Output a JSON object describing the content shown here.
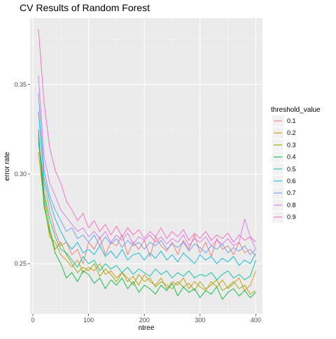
{
  "chart_data": {
    "type": "line",
    "title": "CV Results of Random Forest",
    "xlabel": "ntree",
    "ylabel": "error rate",
    "xlim": [
      -5,
      412
    ],
    "ylim": [
      0.222,
      0.387
    ],
    "x_ticks": [
      0,
      100,
      200,
      300,
      400
    ],
    "x_tick_labels": [
      "0",
      "100",
      "200",
      "300",
      "400"
    ],
    "y_ticks": [
      0.25,
      0.3,
      0.35
    ],
    "y_tick_labels": [
      "0.25",
      "0.30",
      "0.35"
    ],
    "grid": true,
    "legend": {
      "title": "threshold_value",
      "placement": "right"
    },
    "x": [
      10,
      20,
      30,
      40,
      50,
      60,
      70,
      80,
      90,
      100,
      110,
      120,
      130,
      140,
      150,
      160,
      170,
      180,
      190,
      200,
      210,
      220,
      230,
      240,
      250,
      260,
      270,
      280,
      290,
      300,
      310,
      320,
      330,
      340,
      350,
      360,
      370,
      380,
      390,
      400
    ],
    "series": [
      {
        "name": "0.1",
        "color": "#F8766D",
        "values": [
          0.32,
          0.295,
          0.28,
          0.268,
          0.26,
          0.262,
          0.255,
          0.258,
          0.25,
          0.262,
          0.258,
          0.265,
          0.255,
          0.262,
          0.26,
          0.266,
          0.255,
          0.262,
          0.258,
          0.263,
          0.254,
          0.265,
          0.26,
          0.257,
          0.262,
          0.255,
          0.263,
          0.258,
          0.266,
          0.256,
          0.262,
          0.254,
          0.264,
          0.258,
          0.26,
          0.255,
          0.262,
          0.256,
          0.258,
          0.254
        ]
      },
      {
        "name": "0.2",
        "color": "#D39200",
        "values": [
          0.312,
          0.285,
          0.265,
          0.262,
          0.255,
          0.252,
          0.248,
          0.252,
          0.245,
          0.248,
          0.246,
          0.25,
          0.244,
          0.246,
          0.242,
          0.245,
          0.24,
          0.243,
          0.238,
          0.244,
          0.24,
          0.238,
          0.242,
          0.236,
          0.24,
          0.238,
          0.242,
          0.236,
          0.24,
          0.237,
          0.235,
          0.24,
          0.237,
          0.241,
          0.236,
          0.239,
          0.242,
          0.235,
          0.238,
          0.246
        ]
      },
      {
        "name": "0.3",
        "color": "#93AA00",
        "values": [
          0.318,
          0.288,
          0.27,
          0.258,
          0.262,
          0.255,
          0.25,
          0.245,
          0.248,
          0.246,
          0.25,
          0.243,
          0.247,
          0.244,
          0.24,
          0.245,
          0.242,
          0.238,
          0.244,
          0.24,
          0.242,
          0.237,
          0.24,
          0.238,
          0.236,
          0.24,
          0.237,
          0.239,
          0.235,
          0.24,
          0.236,
          0.238,
          0.241,
          0.235,
          0.237,
          0.24,
          0.236,
          0.238,
          0.233,
          0.235
        ]
      },
      {
        "name": "0.4",
        "color": "#00BA38",
        "values": [
          0.325,
          0.282,
          0.268,
          0.256,
          0.25,
          0.242,
          0.245,
          0.24,
          0.246,
          0.244,
          0.239,
          0.242,
          0.236,
          0.241,
          0.238,
          0.242,
          0.236,
          0.24,
          0.234,
          0.238,
          0.236,
          0.233,
          0.238,
          0.235,
          0.239,
          0.232,
          0.237,
          0.234,
          0.236,
          0.231,
          0.235,
          0.233,
          0.237,
          0.23,
          0.234,
          0.236,
          0.232,
          0.235,
          0.231,
          0.234
        ]
      },
      {
        "name": "0.5",
        "color": "#00C19F",
        "values": [
          0.322,
          0.29,
          0.275,
          0.265,
          0.258,
          0.256,
          0.252,
          0.248,
          0.254,
          0.25,
          0.252,
          0.246,
          0.25,
          0.247,
          0.249,
          0.245,
          0.248,
          0.244,
          0.247,
          0.245,
          0.243,
          0.247,
          0.244,
          0.246,
          0.242,
          0.245,
          0.243,
          0.246,
          0.242,
          0.244,
          0.243,
          0.245,
          0.241,
          0.244,
          0.246,
          0.242,
          0.244,
          0.241,
          0.243,
          0.252
        ]
      },
      {
        "name": "0.6",
        "color": "#00B9E3",
        "values": [
          0.335,
          0.298,
          0.285,
          0.275,
          0.268,
          0.262,
          0.258,
          0.262,
          0.256,
          0.258,
          0.255,
          0.26,
          0.254,
          0.257,
          0.253,
          0.258,
          0.252,
          0.255,
          0.256,
          0.252,
          0.256,
          0.253,
          0.257,
          0.252,
          0.255,
          0.251,
          0.256,
          0.253,
          0.25,
          0.255,
          0.252,
          0.254,
          0.25,
          0.253,
          0.251,
          0.254,
          0.249,
          0.252,
          0.25,
          0.256
        ]
      },
      {
        "name": "0.7",
        "color": "#619CFF",
        "values": [
          0.345,
          0.302,
          0.288,
          0.28,
          0.274,
          0.268,
          0.27,
          0.264,
          0.266,
          0.262,
          0.266,
          0.26,
          0.265,
          0.261,
          0.264,
          0.259,
          0.263,
          0.26,
          0.262,
          0.258,
          0.262,
          0.26,
          0.263,
          0.258,
          0.261,
          0.259,
          0.262,
          0.257,
          0.261,
          0.259,
          0.256,
          0.26,
          0.258,
          0.261,
          0.256,
          0.259,
          0.257,
          0.26,
          0.255,
          0.258
        ]
      },
      {
        "name": "0.8",
        "color": "#DB72FB",
        "values": [
          0.355,
          0.31,
          0.295,
          0.288,
          0.28,
          0.276,
          0.272,
          0.268,
          0.27,
          0.265,
          0.268,
          0.264,
          0.268,
          0.262,
          0.266,
          0.263,
          0.267,
          0.261,
          0.265,
          0.263,
          0.266,
          0.262,
          0.265,
          0.261,
          0.264,
          0.262,
          0.266,
          0.26,
          0.264,
          0.262,
          0.265,
          0.26,
          0.263,
          0.261,
          0.264,
          0.26,
          0.262,
          0.275,
          0.265,
          0.258
        ]
      },
      {
        "name": "0.9",
        "color": "#FF61C3",
        "values": [
          0.381,
          0.34,
          0.315,
          0.302,
          0.295,
          0.285,
          0.28,
          0.274,
          0.278,
          0.27,
          0.274,
          0.268,
          0.272,
          0.266,
          0.271,
          0.265,
          0.27,
          0.266,
          0.269,
          0.264,
          0.268,
          0.265,
          0.27,
          0.264,
          0.268,
          0.265,
          0.269,
          0.263,
          0.267,
          0.264,
          0.268,
          0.263,
          0.266,
          0.264,
          0.267,
          0.262,
          0.266,
          0.263,
          0.265,
          0.262
        ]
      }
    ]
  }
}
